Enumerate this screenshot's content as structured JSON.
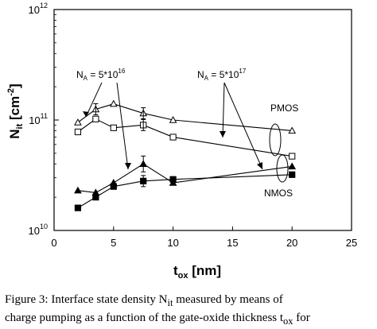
{
  "chart_data": {
    "type": "line",
    "ylabel_main": "N",
    "ylabel_sub": "it",
    "ylabel_unit_open": " [cm",
    "ylabel_unit_exp": "-2",
    "ylabel_unit_close": "]",
    "xlabel_main": "t",
    "xlabel_sub": "ox",
    "xlabel_unit": " [nm]",
    "xlim": [
      0,
      25
    ],
    "ylim": [
      10000000000,
      1000000000000000
    ],
    "yscale": "log",
    "ylim_display": [
      10000000000,
      1000000000000
    ],
    "x_ticks": [
      "0",
      "5",
      "10",
      "15",
      "20",
      "25"
    ],
    "y_ticks": [
      {
        "base": "10",
        "exp": "10"
      },
      {
        "base": "10",
        "exp": "11"
      },
      {
        "base": "10",
        "exp": "12"
      }
    ],
    "series": [
      {
        "marker": "triangle-open",
        "x": [
          2,
          3.5,
          5,
          7.5,
          10,
          20
        ],
        "y": [
          95000000000,
          125000000000,
          140000000000,
          115000000000,
          100000000000,
          80000000000
        ]
      },
      {
        "marker": "square-open",
        "x": [
          2,
          3.5,
          5,
          7.5,
          10,
          20
        ],
        "y": [
          78000000000,
          102000000000,
          85000000000,
          90000000000,
          70000000000,
          47000000000
        ]
      },
      {
        "marker": "triangle-filled",
        "x": [
          2,
          3.5,
          5,
          7.5,
          10,
          20
        ],
        "y": [
          23000000000,
          22000000000,
          27000000000,
          40000000000,
          27000000000,
          38000000000
        ]
      },
      {
        "marker": "square-filled",
        "x": [
          2,
          3.5,
          5,
          7.5,
          10,
          20
        ],
        "y": [
          16000000000,
          20000000000,
          25000000000,
          28000000000,
          29000000000,
          32000000000
        ]
      }
    ],
    "annotations": {
      "na_left": {
        "prefix": "N",
        "sub": "A",
        "mid": " = 5*10",
        "exp": "16"
      },
      "na_right": {
        "prefix": "N",
        "sub": "A",
        "mid": " = 5*10",
        "exp": "17"
      },
      "pmos": "PMOS",
      "nmos": "NMOS"
    }
  },
  "caption": {
    "line1_a": "Figure 3: Interface state density N",
    "line1_sub": "it",
    "line1_b": " measured by means of",
    "line2_a": "charge pumping as a function of the gate-oxide thickness t",
    "line2_sub": "ox",
    "line2_b": " for"
  }
}
